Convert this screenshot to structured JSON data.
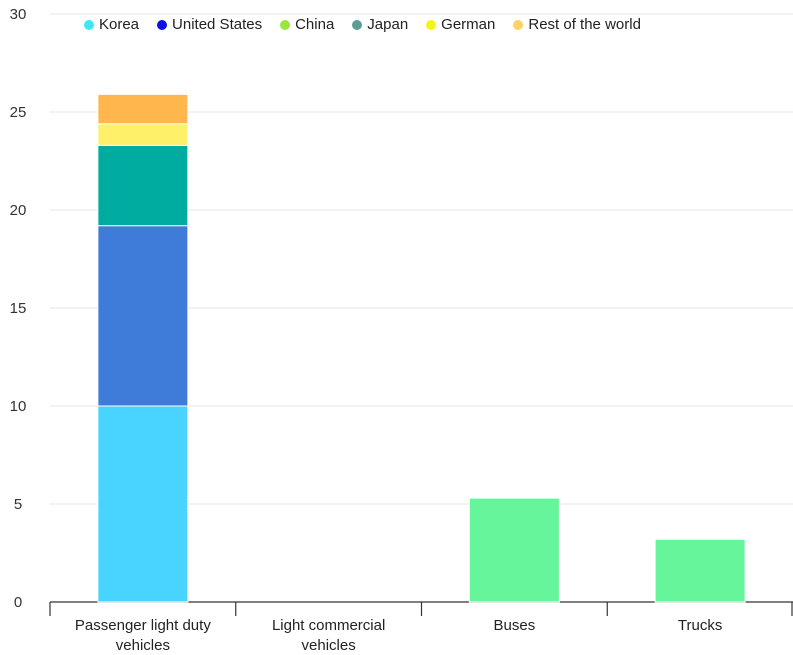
{
  "chart_data": {
    "type": "bar",
    "stacked": true,
    "categories": [
      [
        "Passenger light duty",
        "vehicles"
      ],
      [
        "Light commercial",
        "vehicles"
      ],
      [
        "Buses"
      ],
      [
        "Trucks"
      ]
    ],
    "series": [
      {
        "name": "Korea",
        "legend_color": "#3de8f5",
        "bar_color": "#48d4ff",
        "values": [
          10.0,
          0,
          0,
          0
        ]
      },
      {
        "name": "United States",
        "legend_color": "#0a10e6",
        "bar_color": "#3f7bd8",
        "values": [
          9.2,
          0,
          0,
          0
        ]
      },
      {
        "name": "China",
        "legend_color": "#9be63a",
        "bar_color": "#66f59a",
        "values": [
          0,
          0,
          5.3,
          3.2
        ]
      },
      {
        "name": "Japan",
        "legend_color": "#5c9e96",
        "bar_color": "#00ab9f",
        "values": [
          4.1,
          0,
          0,
          0
        ]
      },
      {
        "name": "German",
        "legend_color": "#f5f514",
        "bar_color": "#fff06a",
        "values": [
          1.1,
          0,
          0,
          0
        ]
      },
      {
        "name": "Rest of the world",
        "legend_color": "#ffd166",
        "bar_color": "#ffb74d",
        "values": [
          1.5,
          0,
          0,
          0
        ]
      }
    ],
    "yticks": [
      0,
      5,
      10,
      15,
      20,
      25,
      30
    ],
    "ylim": [
      0,
      30
    ],
    "grid": true,
    "legend_position": "top"
  }
}
